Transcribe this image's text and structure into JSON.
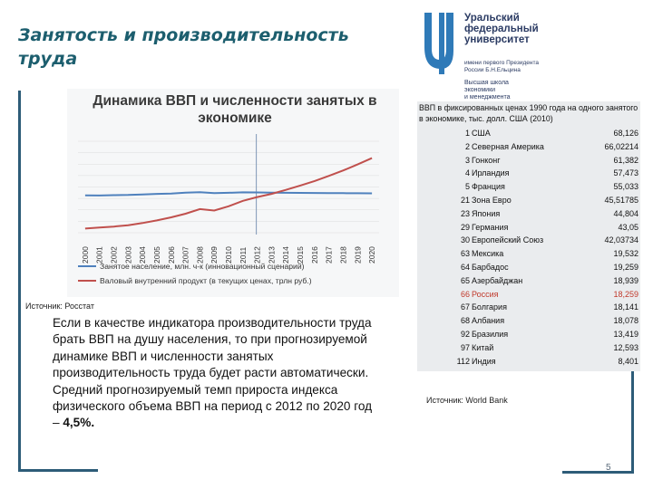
{
  "slide": {
    "title": "Занятость и производительность труда",
    "page_number": "5"
  },
  "logo": {
    "line1": "Уральский",
    "line2": "федеральный",
    "line3": "университет",
    "sub1": "имени первого Президента",
    "sub2": "России Б.Н.Ельцина",
    "sub3": "Высшая школа",
    "sub4": "экономики",
    "sub5": "и менеджмента"
  },
  "chart_data": {
    "type": "line",
    "title": "Динамика ВВП и численности занятых в экономике",
    "categories": [
      "2000",
      "2001",
      "2002",
      "2003",
      "2004",
      "2005",
      "2006",
      "2007",
      "2008",
      "2009",
      "2010",
      "2011",
      "2012",
      "2013",
      "2014",
      "2015",
      "2016",
      "2017",
      "2018",
      "2019",
      "2020"
    ],
    "yticks": [
      "160,00",
      "140,00",
      "120,00",
      "100,00",
      "80,00",
      "60,00",
      "40,00",
      "20,00",
      "0,00"
    ],
    "ylim": [
      0,
      160
    ],
    "vertical_marker_x": "2012",
    "series": [
      {
        "name": "Занятое население, млн. ч-к (инновационный сценарий)",
        "color": "#4f81bd",
        "values": [
          65.3,
          65.1,
          65.8,
          66.1,
          67.0,
          67.9,
          68.4,
          70.1,
          70.9,
          69.3,
          69.8,
          70.7,
          70.5,
          70.1,
          69.9,
          69.7,
          69.5,
          69.4,
          69.2,
          69.0,
          68.9
        ]
      },
      {
        "name": "Валовый внутренний продукт (в текущих ценах, трлн руб.)",
        "color": "#c0504d",
        "values": [
          7.3,
          9.0,
          10.8,
          13.2,
          17.0,
          21.6,
          26.9,
          33.2,
          41.3,
          38.8,
          46.3,
          55.8,
          62.4,
          68.0,
          75.0,
          82.5,
          90.5,
          99.5,
          109.0,
          119.5,
          130.5
        ]
      }
    ],
    "source": "Источник: Росстат"
  },
  "text": {
    "paragraph_normal": "Если в качестве индикатора производительности труда брать ВВП на душу населения, то при прогнозируемой динамике ВВП и численности занятых производительность труда будет расти автоматически. Средний прогнозируемый темп прироста индекса физического объема ВВП на период с 2012 по 2020 год – ",
    "paragraph_bold": "4,5%."
  },
  "table": {
    "heading": "ВВП в фиксированных ценах 1990 года на одного занятого в экономике, тыс. долл. США (2010)",
    "highlight_color": "#c0392b",
    "rows": [
      {
        "rank": "1",
        "country": "США",
        "value": "68,126"
      },
      {
        "rank": "2",
        "country": "Северная Америка",
        "value": "66,02214"
      },
      {
        "rank": "3",
        "country": "Гонконг",
        "value": "61,382"
      },
      {
        "rank": "4",
        "country": "Ирландия",
        "value": "57,473"
      },
      {
        "rank": "5",
        "country": "Франция",
        "value": "55,033"
      },
      {
        "rank": "21",
        "country": "Зона Евро",
        "value": "45,51785"
      },
      {
        "rank": "23",
        "country": "Япония",
        "value": "44,804"
      },
      {
        "rank": "29",
        "country": "Германия",
        "value": "43,05"
      },
      {
        "rank": "30",
        "country": "Европейский Союз",
        "value": "42,03734"
      },
      {
        "rank": "63",
        "country": "Мексика",
        "value": "19,532"
      },
      {
        "rank": "64",
        "country": "Барбадос",
        "value": "19,259"
      },
      {
        "rank": "65",
        "country": "Азербайджан",
        "value": "18,939"
      },
      {
        "rank": "66",
        "country": "Россия",
        "value": "18,259",
        "highlight": true
      },
      {
        "rank": "67",
        "country": "Болгария",
        "value": "18,141"
      },
      {
        "rank": "68",
        "country": "Албания",
        "value": "18,078"
      },
      {
        "rank": "92",
        "country": "Бразилия",
        "value": "13,419"
      },
      {
        "rank": "97",
        "country": "Китай",
        "value": "12,593"
      },
      {
        "rank": "112",
        "country": "Индия",
        "value": "8,401"
      }
    ],
    "source": "Источник: World Bank"
  }
}
